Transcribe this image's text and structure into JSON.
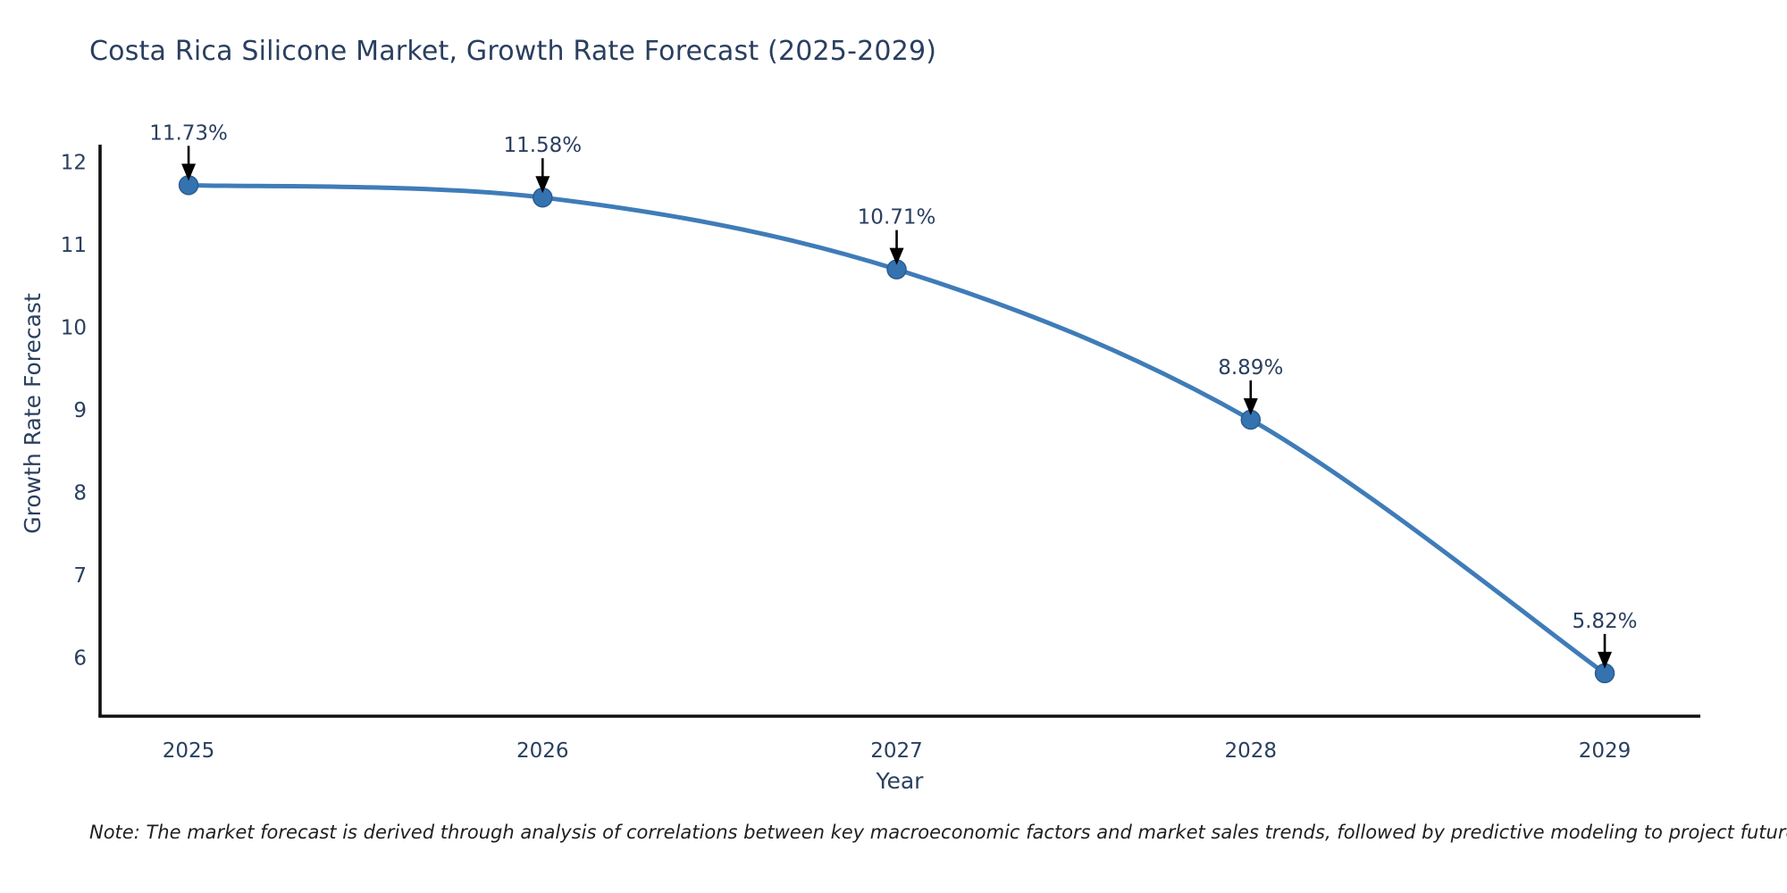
{
  "note": "Note: The market forecast is derived through analysis of correlations between key macroeconomic factors and market sales trends, followed by predictive modeling to project future sales",
  "chart_data": {
    "type": "line",
    "line_shape": "spline",
    "title": "Costa Rica Silicone Market, Growth Rate Forecast (2025-2029)",
    "xlabel": "Year",
    "ylabel": "Growth Rate Forecast",
    "x": [
      2025,
      2026,
      2027,
      2028,
      2029
    ],
    "series": [
      {
        "name": "Growth Rate Forecast",
        "values": [
          11.73,
          11.58,
          10.71,
          8.89,
          5.82
        ],
        "point_labels": [
          "11.73%",
          "11.58%",
          "10.71%",
          "8.89%",
          "5.82%"
        ]
      }
    ],
    "xticks": [
      "2025",
      "2026",
      "2027",
      "2028",
      "2029"
    ],
    "yticks": [
      6,
      7,
      8,
      9,
      10,
      11,
      12
    ],
    "xlim": [
      2024.75,
      2029.27
    ],
    "ylim": [
      5.3,
      12.22
    ],
    "grid": false,
    "legend": "none",
    "annotation_style": "down-arrow",
    "colors": {
      "background": "#ffffff",
      "line": "#3f7cb8",
      "marker": "#3572b0",
      "marker_edge": "#2a5d91",
      "axis_line": "#111111",
      "tick_text": "#2a3f5f",
      "annotation_text": "#2a3f5f",
      "annotation_arrow": "#000000"
    }
  }
}
